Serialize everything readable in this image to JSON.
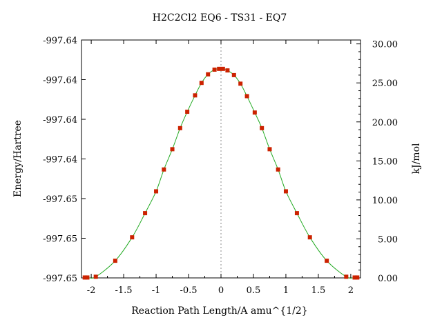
{
  "chart_data": {
    "type": "scatter",
    "title": "H2C2Cl2    EQ6  - TS31  - EQ7",
    "xlabel": "Reaction  Path  Length/A  amu^{1/2}",
    "ylabel_left": "Energy/Hartree",
    "ylabel_right": "kJ/mol",
    "xlim": [
      -2.15,
      2.15
    ],
    "ylim_right": [
      0,
      30.5
    ],
    "x_ticks": [
      -2,
      -1.5,
      -1,
      -0.5,
      0,
      0.5,
      1,
      1.5,
      2
    ],
    "x_tick_labels": [
      "-2",
      "-1.5",
      "-1",
      "-0.5",
      "0",
      "0.5",
      "1",
      "1.5",
      "2"
    ],
    "left_tick_labels": [
      "-997.64",
      "-997.64",
      "-997.64",
      "-997.64",
      "-997.65",
      "-997.65",
      "-997.65"
    ],
    "right_ticks": [
      0,
      5,
      10,
      15,
      20,
      25,
      30
    ],
    "right_tick_labels": [
      "0.00",
      "5.00",
      "10.00",
      "15.00",
      "20.00",
      "25.00",
      "30.00"
    ],
    "ts_marker_x": 0,
    "line_color": "#22aa22",
    "point_color": "#cc2200",
    "vline_color": "#888888",
    "points_x": [
      -2.1,
      -2.06,
      -1.93,
      -1.63,
      -1.37,
      -1.17,
      -1.0,
      -0.88,
      -0.75,
      -0.63,
      -0.52,
      -0.4,
      -0.3,
      -0.2,
      -0.1,
      -0.03,
      0.03,
      0.1,
      0.2,
      0.3,
      0.4,
      0.52,
      0.63,
      0.75,
      0.88,
      1.0,
      1.17,
      1.37,
      1.63,
      1.93,
      2.06,
      2.1
    ],
    "points_y": [
      0.05,
      0.05,
      0.15,
      2.2,
      5.2,
      8.3,
      11.1,
      13.9,
      16.5,
      19.2,
      21.3,
      23.4,
      25.0,
      26.1,
      26.7,
      26.8,
      26.8,
      26.6,
      26.0,
      24.9,
      23.3,
      21.2,
      19.2,
      16.5,
      13.9,
      11.1,
      8.3,
      5.2,
      2.2,
      0.15,
      0.05,
      0.05
    ]
  }
}
